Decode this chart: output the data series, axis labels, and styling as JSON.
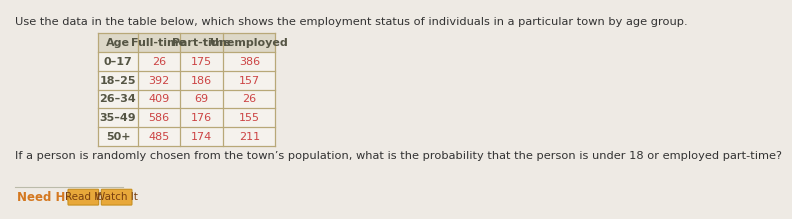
{
  "title": "Use the data in the table below, which shows the employment status of individuals in a particular town by age group.",
  "question": "If a person is randomly chosen from the town’s population, what is the probability that the person is under 18 or employed part-time?",
  "need_help_label": "Need Help?",
  "btn1_label": "Read It",
  "btn2_label": "Watch It",
  "headers": [
    "Age",
    "Full-time",
    "Part-time",
    "Unemployed"
  ],
  "rows": [
    [
      "0–17",
      "26",
      "175",
      "386"
    ],
    [
      "18–25",
      "392",
      "186",
      "157"
    ],
    [
      "26–34",
      "409",
      "69",
      "26"
    ],
    [
      "35–49",
      "586",
      "176",
      "155"
    ],
    [
      "50+",
      "485",
      "174",
      "211"
    ]
  ],
  "bg_color": "#eeeae4",
  "table_header_bg": "#ddd8c8",
  "table_row_bg": "#f5f2ed",
  "table_border_color": "#b8a878",
  "data_color": "#cc4444",
  "header_text_color": "#555544",
  "title_color": "#333333",
  "question_color": "#333333",
  "need_help_color": "#d47820",
  "btn_bg": "#e8a83a",
  "btn_border": "#c89020",
  "btn_text_color": "#7a4010",
  "sep_color": "#bbbbaa",
  "title_fontsize": 8.2,
  "question_fontsize": 8.2,
  "table_fontsize": 8.0,
  "need_help_fontsize": 8.5,
  "btn_fontsize": 7.5
}
